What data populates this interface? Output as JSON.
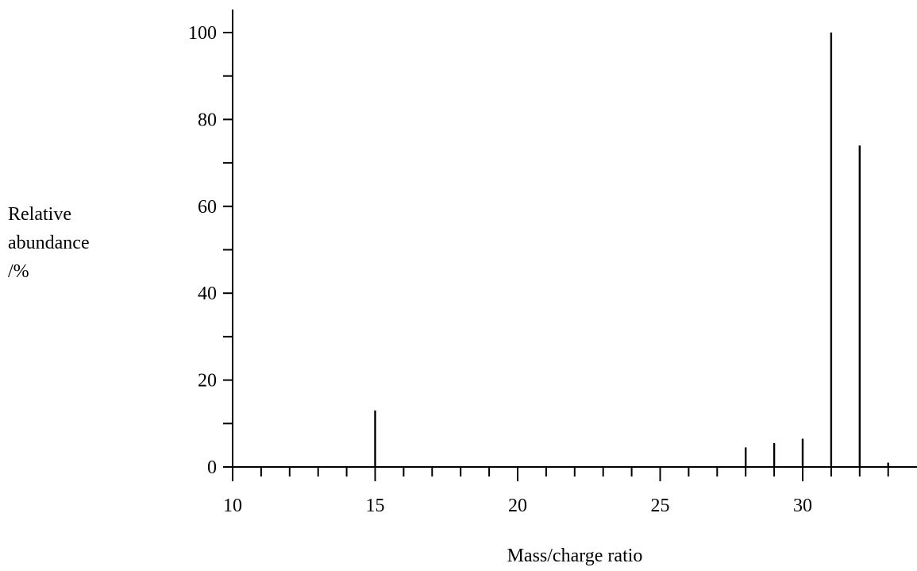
{
  "chart_data": {
    "type": "bar",
    "title": "",
    "xlabel": "Mass/charge ratio",
    "ylabel_lines": [
      "Relative",
      "abundance",
      "/%"
    ],
    "xlim": [
      10,
      34
    ],
    "ylim": [
      0,
      100
    ],
    "x_ticks_major": [
      10,
      15,
      20,
      25,
      30
    ],
    "x_ticks_minor_step": 1,
    "y_ticks_major": [
      0,
      20,
      40,
      60,
      80,
      100
    ],
    "y_ticks_minor_step": 10,
    "grid": false,
    "legend": "none",
    "x": [
      15,
      28,
      29,
      30,
      31,
      32,
      33
    ],
    "values": [
      13,
      4.5,
      5.5,
      6.5,
      100,
      74,
      1
    ]
  }
}
